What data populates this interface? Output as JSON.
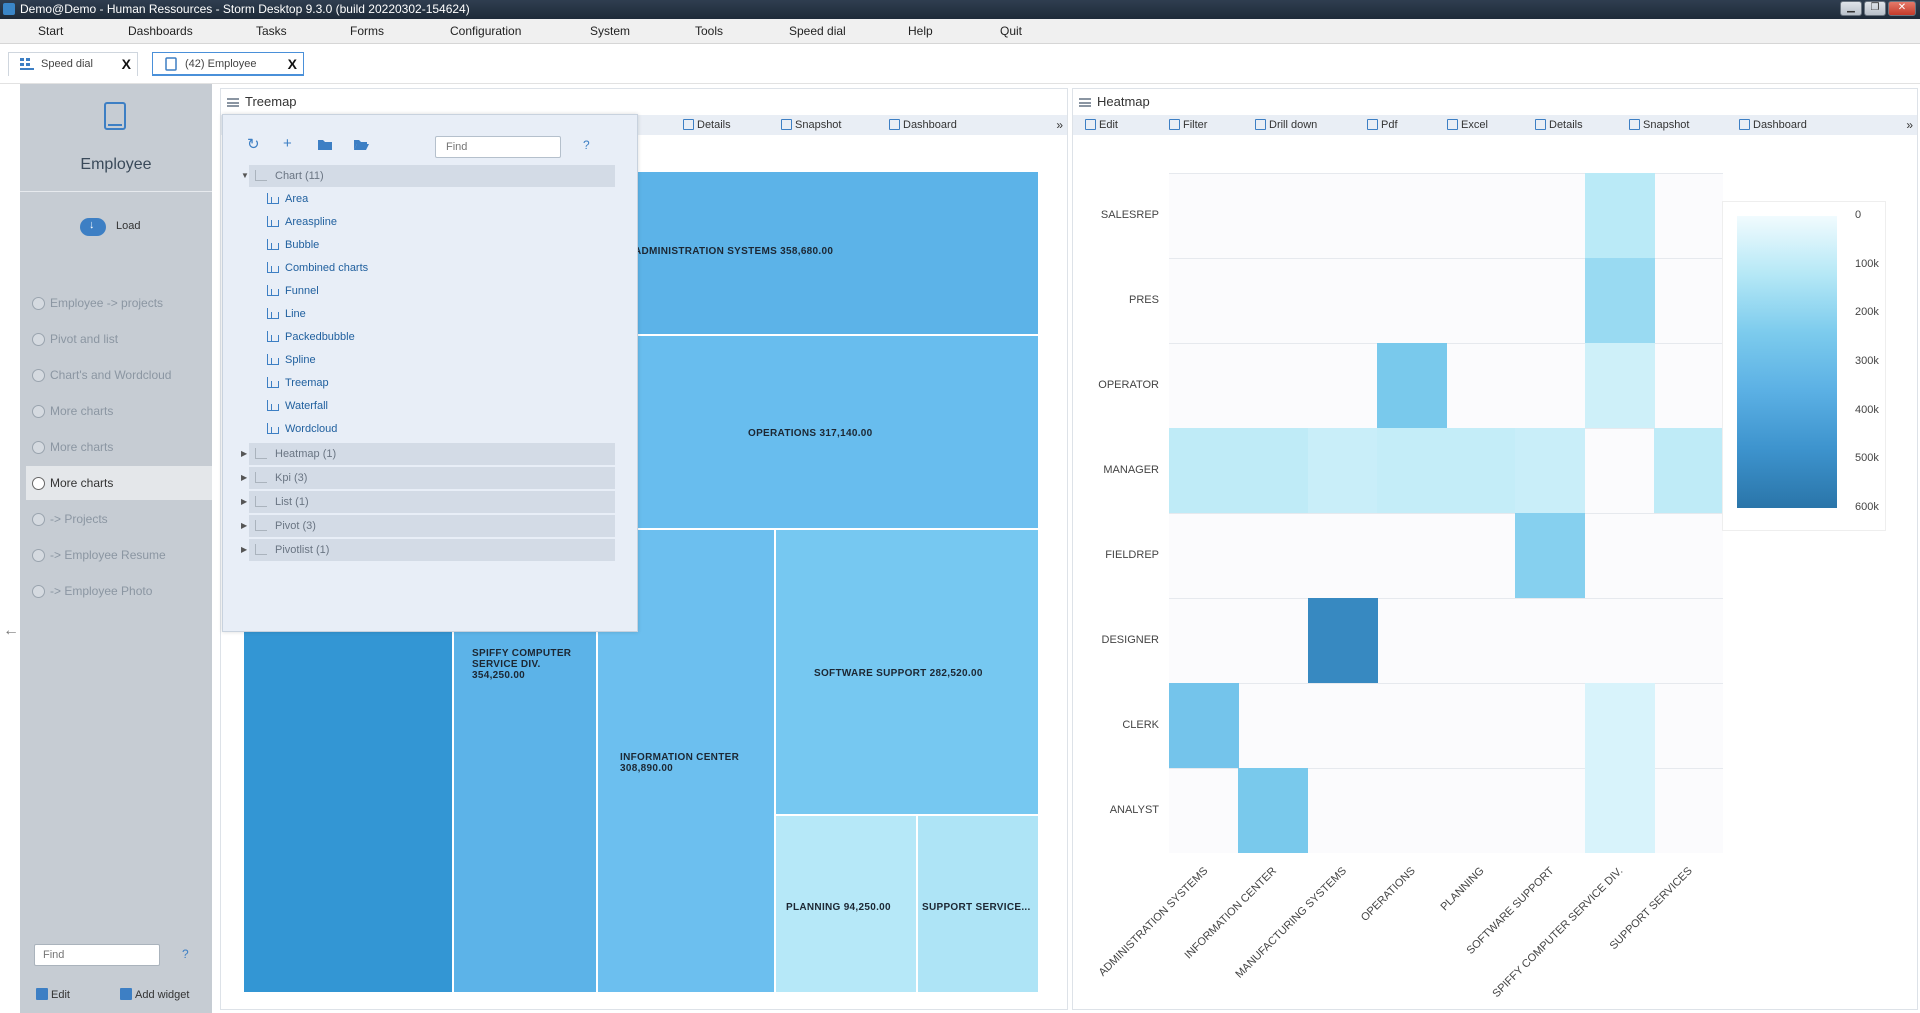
{
  "window": {
    "title": "Demo@Demo - Human Ressources - Storm Desktop 9.3.0 (build 20220302-154624)",
    "controls": [
      "▁",
      "❐",
      "✕"
    ]
  },
  "menu": [
    "Start",
    "Dashboards",
    "Tasks",
    "Forms",
    "Configuration",
    "System",
    "Tools",
    "Speed dial",
    "Help",
    "Quit"
  ],
  "tabs": [
    {
      "label": "Speed dial",
      "close": "X"
    },
    {
      "label": "(42) Employee",
      "close": "X"
    }
  ],
  "sidebar": {
    "title": "Employee",
    "load_label": "Load",
    "items": [
      "Employee -> projects",
      "Pivot and list",
      "Chart's and Wordcloud",
      "More charts",
      "More charts",
      "More charts",
      "-> Projects",
      "-> Employee Resume",
      "-> Employee Photo"
    ],
    "active_index": 5,
    "find_placeholder": "Find",
    "help": "?",
    "edit_label": "Edit",
    "add_widget_label": "Add widget"
  },
  "treemap_panel": {
    "title": "Treemap",
    "toolbar": [
      "Details",
      "Snapshot",
      "Dashboard"
    ],
    "more": "»",
    "chart_data": {
      "type": "treemap",
      "title": "",
      "nodes": [
        {
          "label": "ADMINISTRATION SYSTEMS 358,680.00",
          "value": 358680
        },
        {
          "label": "OPERATIONS 317,140.00",
          "value": 317140
        },
        {
          "label": "SPIFFY COMPUTER SERVICE DIV. 354,250.00",
          "value": 354250
        },
        {
          "label": "INFORMATION CENTER 308,890.00",
          "value": 308890
        },
        {
          "label": "SOFTWARE SUPPORT 282,520.00",
          "value": 282520
        },
        {
          "label": "PLANNING 94,250.00",
          "value": 94250
        },
        {
          "label": "SUPPORT SERVICE...",
          "value": null
        }
      ]
    }
  },
  "popup": {
    "find_placeholder": "Find",
    "help": "?",
    "chart_group": "Chart (11)",
    "chart_items": [
      "Area",
      "Areaspline",
      "Bubble",
      "Combined charts",
      "Funnel",
      "Line",
      "Packedbubble",
      "Spline",
      "Treemap",
      "Waterfall",
      "Wordcloud"
    ],
    "groups": [
      "Heatmap (1)",
      "Kpi (3)",
      "List (1)",
      "Pivot (3)",
      "Pivotlist (1)"
    ]
  },
  "heatmap_panel": {
    "title": "Heatmap",
    "toolbar": [
      "Edit",
      "Filter",
      "Drill down",
      "Pdf",
      "Excel",
      "Details",
      "Snapshot",
      "Dashboard"
    ],
    "more": "»",
    "chart_data": {
      "type": "heatmap",
      "title": "",
      "rows": [
        "SALESREP",
        "PRES",
        "OPERATOR",
        "MANAGER",
        "FIELDREP",
        "DESIGNER",
        "CLERK",
        "ANALYST"
      ],
      "columns": [
        "ADMINISTRATION SYSTEMS",
        "INFORMATION CENTER",
        "MANUFACTURING SYSTEMS",
        "OPERATIONS",
        "PLANNING",
        "SOFTWARE SUPPORT",
        "SPIFFY COMPUTER SERVICE DIV.",
        "SUPPORT SERVICES"
      ],
      "values": [
        [
          null,
          null,
          null,
          null,
          null,
          null,
          110000,
          null
        ],
        [
          null,
          null,
          null,
          null,
          null,
          null,
          180000,
          null
        ],
        [
          null,
          null,
          null,
          250000,
          null,
          null,
          70000,
          null
        ],
        [
          100000,
          100000,
          80000,
          90000,
          90000,
          80000,
          null,
          100000
        ],
        [
          null,
          null,
          null,
          null,
          null,
          220000,
          null,
          null
        ],
        [
          null,
          null,
          520000,
          null,
          null,
          null,
          null,
          null
        ],
        [
          270000,
          null,
          null,
          null,
          null,
          null,
          50000,
          null
        ],
        [
          null,
          250000,
          null,
          null,
          null,
          null,
          50000,
          null
        ]
      ],
      "legend_ticks": [
        "0",
        "100k",
        "200k",
        "300k",
        "400k",
        "500k",
        "600k"
      ],
      "color_min": "#f1fbfe",
      "color_max": "#2a75a9"
    }
  }
}
